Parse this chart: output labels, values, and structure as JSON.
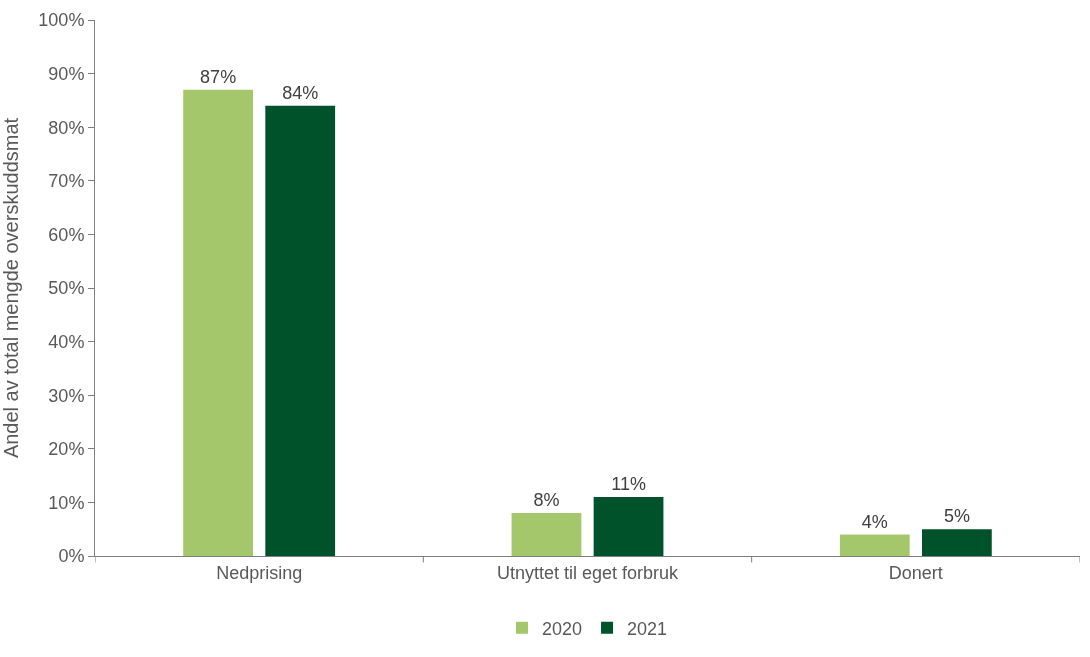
{
  "chart_data": {
    "type": "bar",
    "ylabel": "Andel av total mengde overskuddsmat",
    "categories": [
      "Nedprising",
      "Utnyttet til eget forbruk",
      "Donert"
    ],
    "series": [
      {
        "name": "2020",
        "color": "#a5c76c",
        "values": [
          87,
          8,
          4
        ],
        "value_labels": [
          "87%",
          "8%",
          "4%"
        ]
      },
      {
        "name": "2021",
        "color": "#00522b",
        "values": [
          84,
          11,
          5
        ],
        "value_labels": [
          "84%",
          "11%",
          "5%"
        ]
      }
    ],
    "ylim": [
      0,
      100
    ],
    "yticks": [
      {
        "value": 0,
        "label": "0%"
      },
      {
        "value": 10,
        "label": "10%"
      },
      {
        "value": 20,
        "label": "20%"
      },
      {
        "value": 30,
        "label": "30%"
      },
      {
        "value": 40,
        "label": "40%"
      },
      {
        "value": 50,
        "label": "50%"
      },
      {
        "value": 60,
        "label": "60%"
      },
      {
        "value": 70,
        "label": "70%"
      },
      {
        "value": 80,
        "label": "80%"
      },
      {
        "value": 90,
        "label": "90%"
      },
      {
        "value": 100,
        "label": "100%"
      }
    ],
    "grid": false,
    "legend": "bottom"
  }
}
